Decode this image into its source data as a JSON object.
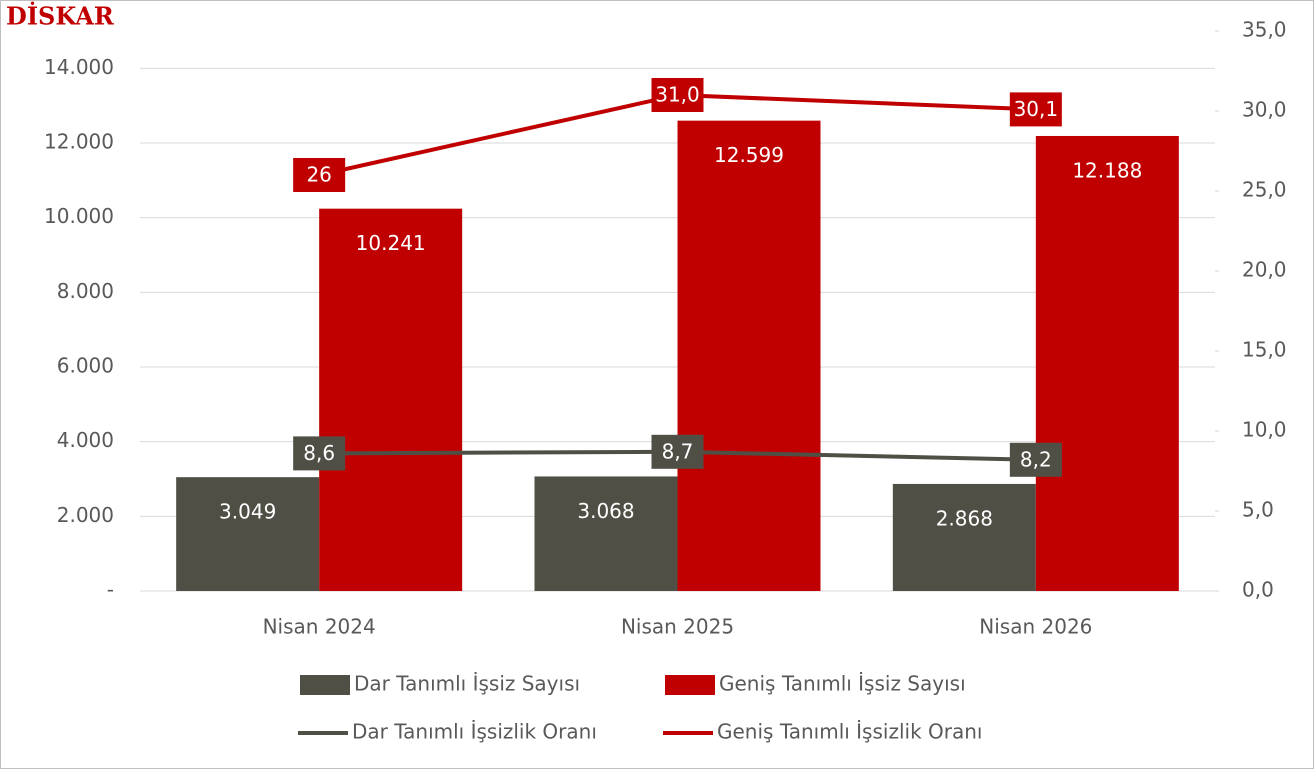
{
  "chart_data": {
    "type": "bar",
    "logo": "DİSKAR",
    "categories": [
      "Nisan 2024",
      "Nisan 2025",
      "Nisan 2026"
    ],
    "series": [
      {
        "name": "Dar Tanımlı İşsiz Sayısı",
        "type": "bar",
        "color": "#504f46",
        "values": [
          3049,
          3068,
          2868
        ],
        "value_labels": [
          "3.049",
          "3.068",
          "2.868"
        ]
      },
      {
        "name": "Geniş Tanımlı İşsiz Sayısı",
        "type": "bar",
        "color": "#c00000",
        "values": [
          10241,
          12599,
          12188
        ],
        "value_labels": [
          "10.241",
          "12.599",
          "12.188"
        ]
      },
      {
        "name": "Dar Tanımlı İşsizlik Oranı",
        "type": "line",
        "axis": "y2",
        "color": "#504f46",
        "values": [
          8.6,
          8.7,
          8.2
        ],
        "value_labels": [
          "8,6",
          "8,7",
          "8,2"
        ]
      },
      {
        "name": "Geniş Tanımlı İşsizlik Oranı",
        "type": "line",
        "axis": "y2",
        "color": "#c00000",
        "values": [
          26,
          31.0,
          30.1
        ],
        "value_labels": [
          "26",
          "31,0",
          "30,1"
        ]
      }
    ],
    "ylim": [
      0,
      15000
    ],
    "yticks": [
      {
        "value": 0,
        "label": "-"
      },
      {
        "value": 2000,
        "label": "2.000"
      },
      {
        "value": 4000,
        "label": "4.000"
      },
      {
        "value": 6000,
        "label": "6.000"
      },
      {
        "value": 8000,
        "label": "8.000"
      },
      {
        "value": 10000,
        "label": "10.000"
      },
      {
        "value": 12000,
        "label": "12.000"
      },
      {
        "value": 14000,
        "label": "14.000"
      }
    ],
    "y2lim": [
      0,
      35
    ],
    "y2ticks": [
      {
        "value": 0,
        "label": "0,0"
      },
      {
        "value": 5,
        "label": "5,0"
      },
      {
        "value": 10,
        "label": "10,0"
      },
      {
        "value": 15,
        "label": "15,0"
      },
      {
        "value": 20,
        "label": "20,0"
      },
      {
        "value": 25,
        "label": "25,0"
      },
      {
        "value": 30,
        "label": "30,0"
      },
      {
        "value": 35,
        "label": "35,0"
      }
    ],
    "grid": true
  }
}
